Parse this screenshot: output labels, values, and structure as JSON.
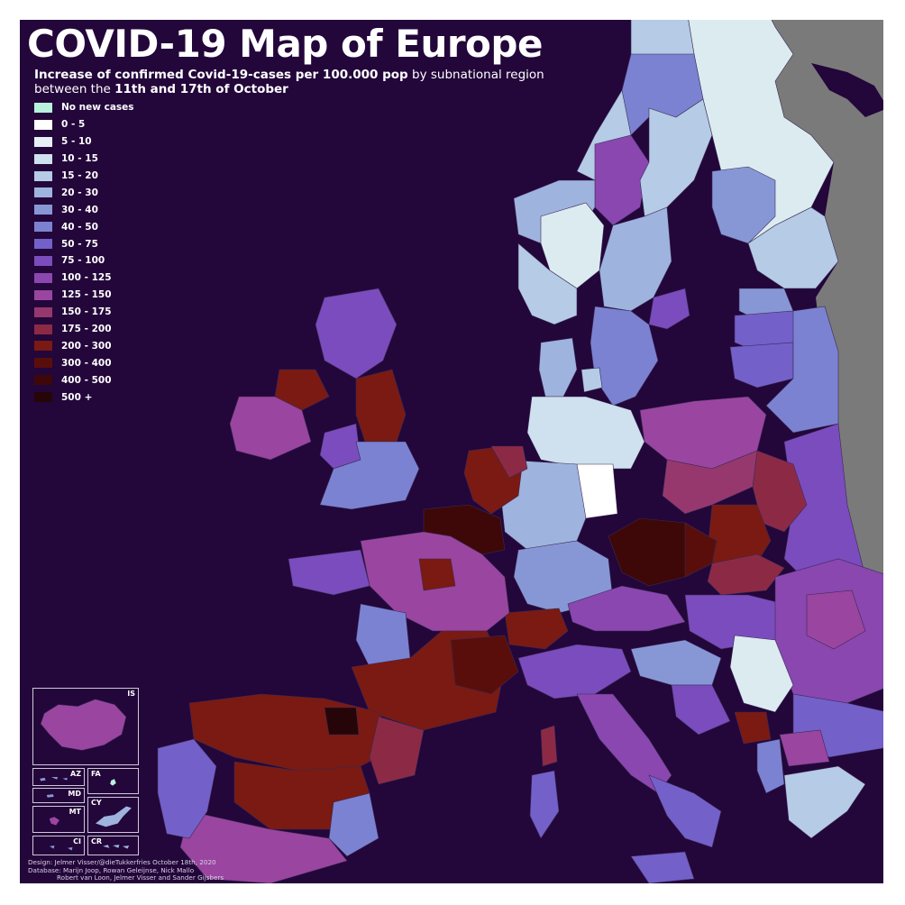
{
  "title": "COVID-19 Map of Europe",
  "subtitle": {
    "line1_bold": "Increase of confirmed Covid-19-cases per 100.000 pop",
    "line1_rest": " by subnational region",
    "line2_pre": "between the ",
    "line2_bold": "11th and 17th of October"
  },
  "legend": [
    {
      "label": "No new cases",
      "color": "#b9f2dc"
    },
    {
      "label": "0 - 5",
      "color": "#ffffff"
    },
    {
      "label": "5 - 10",
      "color": "#e6f0f5"
    },
    {
      "label": "10 - 15",
      "color": "#cfe0ee"
    },
    {
      "label": "15 - 20",
      "color": "#b5cbe6"
    },
    {
      "label": "20 - 30",
      "color": "#9eb3de"
    },
    {
      "label": "30 - 40",
      "color": "#8797d6"
    },
    {
      "label": "40 - 50",
      "color": "#7b82d2"
    },
    {
      "label": "50 - 75",
      "color": "#7360c9"
    },
    {
      "label": "75 - 100",
      "color": "#7a4cbd"
    },
    {
      "label": "100 - 125",
      "color": "#8a47b0"
    },
    {
      "label": "125 - 150",
      "color": "#9a45a0"
    },
    {
      "label": "150 - 175",
      "color": "#96386e"
    },
    {
      "label": "175 - 200",
      "color": "#8c2a45"
    },
    {
      "label": "200 - 300",
      "color": "#7a1a12"
    },
    {
      "label": "300 - 400",
      "color": "#5a0e0b"
    },
    {
      "label": "400 - 500",
      "color": "#3e0808"
    },
    {
      "label": "500 +",
      "color": "#260508"
    }
  ],
  "insets": {
    "iceland": "IS",
    "azores": "AZ",
    "faroe": "FA",
    "madeira": "MD",
    "cyprus": "CY",
    "malta": "MT",
    "channel_islands": "CI",
    "canaries": "CR"
  },
  "credits": {
    "line1": "Design: Jelmer Visser/@dieTukkerfries October 18th, 2020",
    "line2": "Database: Marijn Joop, Rowan Geleijnse, Nick Mallo",
    "line3": "Robert van Loon, Jelmer Visser and Sander Gijsbers"
  },
  "colors": {
    "background": "#23063a",
    "no_data_land": "#7a7a7a",
    "frame": "#ffffff"
  }
}
